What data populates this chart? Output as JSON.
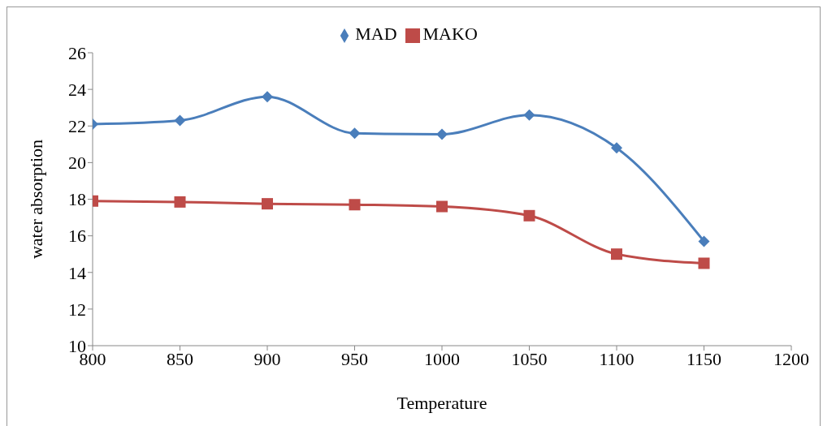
{
  "chart_data": {
    "type": "line",
    "xlabel": "Temperature",
    "ylabel": "water absorption",
    "x": [
      800,
      850,
      900,
      950,
      1000,
      1050,
      1100,
      1150
    ],
    "series": [
      {
        "name": "MAD",
        "color": "#4a7ebb",
        "marker": "diamond",
        "values": [
          22.1,
          22.3,
          23.6,
          21.6,
          21.55,
          22.6,
          20.8,
          15.7
        ]
      },
      {
        "name": "MAKO",
        "color": "#be4b48",
        "marker": "square",
        "values": [
          17.9,
          17.85,
          17.75,
          17.7,
          17.6,
          17.1,
          15.0,
          14.5
        ]
      }
    ],
    "xlim": [
      800,
      1200
    ],
    "xticks": [
      800,
      850,
      900,
      950,
      1000,
      1050,
      1100,
      1150,
      1200
    ],
    "ylim": [
      10,
      26
    ],
    "yticks": [
      10,
      12,
      14,
      16,
      18,
      20,
      22,
      24,
      26
    ],
    "grid": false,
    "legend": "top",
    "line_style": "solid"
  }
}
